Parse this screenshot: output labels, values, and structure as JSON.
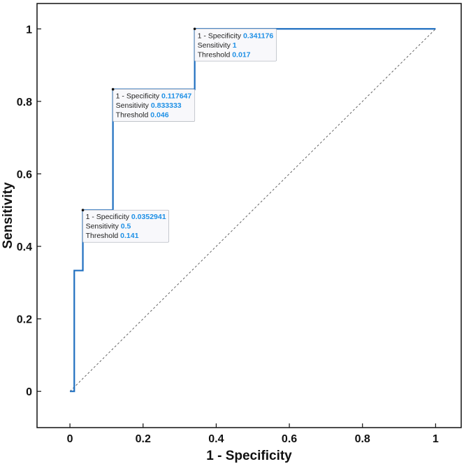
{
  "chart_data": {
    "type": "line",
    "title": "",
    "xlabel": "1 - Specificity",
    "ylabel": "Sensitivity",
    "xlim": [
      -0.09,
      1.07
    ],
    "ylim": [
      -0.1,
      1.07
    ],
    "grid": false,
    "x_ticks": [
      0,
      0.2,
      0.4,
      0.6,
      0.8,
      1
    ],
    "x_tick_labels": [
      "0",
      "0.2",
      "0.4",
      "0.6",
      "0.8",
      "1"
    ],
    "y_ticks": [
      0,
      0.2,
      0.4,
      0.6,
      0.8,
      1
    ],
    "y_tick_labels": [
      "0",
      "0.2",
      "0.4",
      "0.6",
      "0.8",
      "1"
    ],
    "series": [
      {
        "name": "ROC curve",
        "color": "#1f6fc0",
        "x": [
          0,
          0.0118,
          0.0118,
          0.0353,
          0.0353,
          0.1176,
          0.1176,
          0.3412,
          0.3412,
          1
        ],
        "y": [
          0,
          0,
          0.3333,
          0.3333,
          0.5,
          0.5,
          0.8333,
          0.8333,
          1,
          1
        ]
      },
      {
        "name": "Reference line",
        "color": "#555555",
        "style": "dashed",
        "x": [
          0,
          1
        ],
        "y": [
          0,
          1
        ]
      }
    ],
    "datatips": [
      {
        "x": 0.0352941,
        "y": 0.5,
        "lines": [
          {
            "label": "1 - Specificity",
            "value": "0.0352941"
          },
          {
            "label": "Sensitivity",
            "value": "0.5"
          },
          {
            "label": "Threshold",
            "value": "0.141"
          }
        ]
      },
      {
        "x": 0.117647,
        "y": 0.833333,
        "lines": [
          {
            "label": "1 - Specificity",
            "value": "0.117647"
          },
          {
            "label": "Sensitivity",
            "value": "0.833333"
          },
          {
            "label": "Threshold",
            "value": "0.046"
          }
        ]
      },
      {
        "x": 0.341176,
        "y": 1,
        "lines": [
          {
            "label": "1 - Specificity",
            "value": "0.341176"
          },
          {
            "label": "Sensitivity",
            "value": "1"
          },
          {
            "label": "Threshold",
            "value": "0.017"
          }
        ]
      }
    ],
    "colors": {
      "value_text": "#1e90e6",
      "tip_border": "#b8bcc4",
      "tip_background": "#f8f8fb"
    }
  }
}
